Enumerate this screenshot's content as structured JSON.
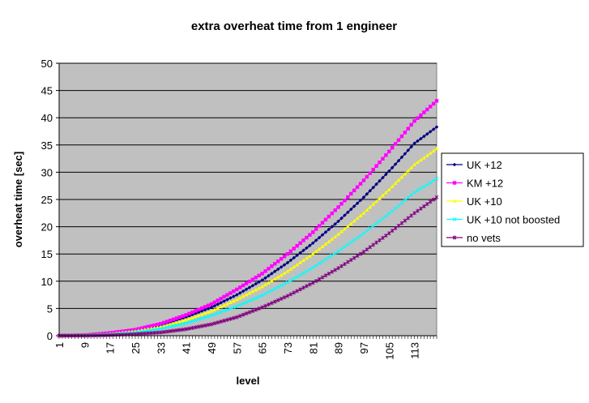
{
  "chart_data": {
    "type": "line",
    "title": "extra overheat time from 1 engineer",
    "xlabel": "level",
    "ylabel": "overheat time [sec]",
    "xlim": [
      1,
      120
    ],
    "ylim": [
      0,
      50
    ],
    "y_ticks": [
      0,
      5,
      10,
      15,
      20,
      25,
      30,
      35,
      40,
      45,
      50
    ],
    "x_tick_labels": [
      "1",
      "9",
      "17",
      "25",
      "33",
      "41",
      "49",
      "57",
      "65",
      "73",
      "81",
      "89",
      "97",
      "105",
      "113"
    ],
    "grid": "horizontal",
    "legend_position": "right",
    "plot_background": "#c0c0c0",
    "series": [
      {
        "name": "UK +12",
        "color": "#000080",
        "marker": "diamond",
        "x": [
          1,
          9,
          17,
          25,
          33,
          41,
          49,
          57,
          65,
          73,
          81,
          89,
          97,
          105,
          113,
          120
        ],
        "y": [
          0,
          0.1,
          0.4,
          0.9,
          1.9,
          3.4,
          5.2,
          7.5,
          10.2,
          13.4,
          17.0,
          21.0,
          25.4,
          30.2,
          35.3,
          38.3
        ]
      },
      {
        "name": "KM +12",
        "color": "#ff00ff",
        "marker": "square",
        "x": [
          1,
          9,
          17,
          25,
          33,
          41,
          49,
          57,
          65,
          73,
          81,
          89,
          97,
          105,
          113,
          120
        ],
        "y": [
          0,
          0.1,
          0.5,
          1.1,
          2.2,
          3.8,
          5.8,
          8.5,
          11.4,
          15.0,
          19.0,
          23.6,
          28.5,
          33.8,
          39.4,
          43.1
        ]
      },
      {
        "name": "UK +10",
        "color": "#ffff00",
        "marker": "triangle",
        "x": [
          1,
          9,
          17,
          25,
          33,
          41,
          49,
          57,
          65,
          73,
          81,
          89,
          97,
          105,
          113,
          120
        ],
        "y": [
          0,
          0.1,
          0.3,
          0.8,
          1.6,
          2.9,
          4.5,
          6.6,
          9.0,
          11.8,
          15.0,
          18.6,
          22.5,
          26.8,
          31.4,
          34.3
        ]
      },
      {
        "name": "UK +10 not boosted",
        "color": "#00ffff",
        "marker": "x",
        "x": [
          1,
          9,
          17,
          25,
          33,
          41,
          49,
          57,
          65,
          73,
          81,
          89,
          97,
          105,
          113,
          120
        ],
        "y": [
          0,
          0.05,
          0.2,
          0.6,
          1.3,
          2.3,
          3.7,
          5.4,
          7.4,
          9.8,
          12.5,
          15.5,
          18.8,
          22.4,
          26.3,
          28.8
        ]
      },
      {
        "name": "no vets",
        "color": "#800080",
        "marker": "star",
        "x": [
          1,
          9,
          17,
          25,
          33,
          41,
          49,
          57,
          65,
          73,
          81,
          89,
          97,
          105,
          113,
          120
        ],
        "y": [
          0,
          0,
          0.1,
          0.3,
          0.6,
          1.2,
          2.1,
          3.4,
          5.2,
          7.3,
          9.7,
          12.4,
          15.4,
          18.8,
          22.5,
          25.4
        ]
      }
    ]
  }
}
